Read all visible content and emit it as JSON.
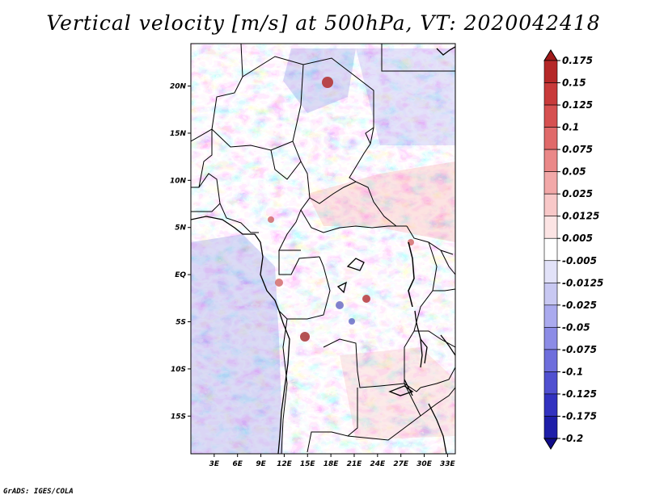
{
  "title": "Vertical velocity [m/s] at 500hPa, VT: 2020042418",
  "footer": "GrADS: IGES/COLA",
  "map": {
    "lat_range": [
      -19,
      24.5
    ],
    "lon_range": [
      0,
      34
    ],
    "lat_ticks": [
      "20N",
      "15N",
      "10N",
      "5N",
      "EQ",
      "5S",
      "10S",
      "15S"
    ],
    "lat_tick_values": [
      20,
      15,
      10,
      5,
      0,
      -5,
      -10,
      -15
    ],
    "lon_ticks": [
      "3E",
      "6E",
      "9E",
      "12E",
      "15E",
      "18E",
      "21E",
      "24E",
      "27E",
      "30E",
      "33E"
    ],
    "lon_tick_values": [
      3,
      6,
      9,
      12,
      15,
      18,
      21,
      24,
      27,
      30,
      33
    ],
    "field": "vertical velocity (shaded, blue = negative, red = positive)"
  },
  "colorbar": {
    "labels": [
      "0.175",
      "0.15",
      "0.125",
      "0.1",
      "0.075",
      "0.05",
      "0.025",
      "0.0125",
      "0.005",
      "-0.005",
      "-0.0125",
      "-0.025",
      "-0.05",
      "-0.075",
      "-0.1",
      "-0.125",
      "-0.175",
      "-0.2"
    ],
    "colors": [
      "#a01a1a",
      "#b52828",
      "#c83a3a",
      "#d65050",
      "#e06a6a",
      "#ea8888",
      "#f2a8a8",
      "#f8c8c8",
      "#fce4e4",
      "#ffffff",
      "#e2e2f8",
      "#c8c8f2",
      "#aaaaee",
      "#8c8ce6",
      "#6e6edc",
      "#5050d0",
      "#3232c0",
      "#1e1ea8",
      "#100c8a"
    ]
  }
}
